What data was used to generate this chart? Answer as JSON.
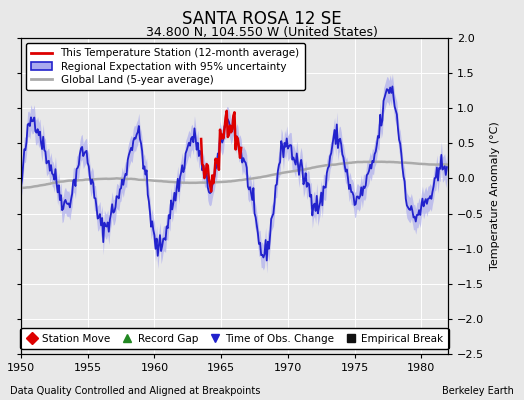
{
  "title": "SANTA ROSA 12 SE",
  "subtitle": "34.800 N, 104.550 W (United States)",
  "xlabel_left": "Data Quality Controlled and Aligned at Breakpoints",
  "xlabel_right": "Berkeley Earth",
  "ylabel": "Temperature Anomaly (°C)",
  "xlim": [
    1950,
    1982
  ],
  "ylim": [
    -2.5,
    2.0
  ],
  "yticks": [
    -2.5,
    -2,
    -1.5,
    -1,
    -0.5,
    0,
    0.5,
    1,
    1.5,
    2
  ],
  "xticks": [
    1950,
    1955,
    1960,
    1965,
    1970,
    1975,
    1980
  ],
  "bg_color": "#e8e8e8",
  "plot_bg_color": "#e8e8e8",
  "regional_color": "#2222cc",
  "regional_fill_color": "#aaaaee",
  "station_color": "#dd0000",
  "global_color": "#aaaaaa",
  "time_of_obs_x": 1965.2,
  "seed": 42
}
